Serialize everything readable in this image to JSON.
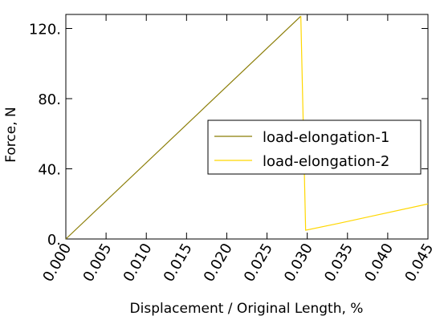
{
  "chart_data": {
    "type": "line",
    "xlabel": "Displacement / Original Length, %",
    "ylabel": "Force, N",
    "xlim": [
      0,
      0.045
    ],
    "ylim": [
      0,
      128
    ],
    "x_ticks": [
      "0.000",
      "0.005",
      "0.010",
      "0.015",
      "0.020",
      "0.025",
      "0.030",
      "0.035",
      "0.040",
      "0.045"
    ],
    "y_ticks": [
      "0.",
      "40.",
      "80.",
      "120."
    ],
    "grid": false,
    "legend_position": "right",
    "series": [
      {
        "name": "load-elongation-1",
        "color": "#8b7d06",
        "points": [
          [
            0.0,
            0.0
          ],
          [
            0.0292,
            127.0
          ]
        ]
      },
      {
        "name": "load-elongation-2",
        "color": "#ffd700",
        "points": [
          [
            0.0292,
            127.0
          ],
          [
            0.0298,
            5.0
          ],
          [
            0.034,
            9.0
          ],
          [
            0.038,
            13.0
          ],
          [
            0.045,
            20.0
          ]
        ]
      }
    ]
  }
}
